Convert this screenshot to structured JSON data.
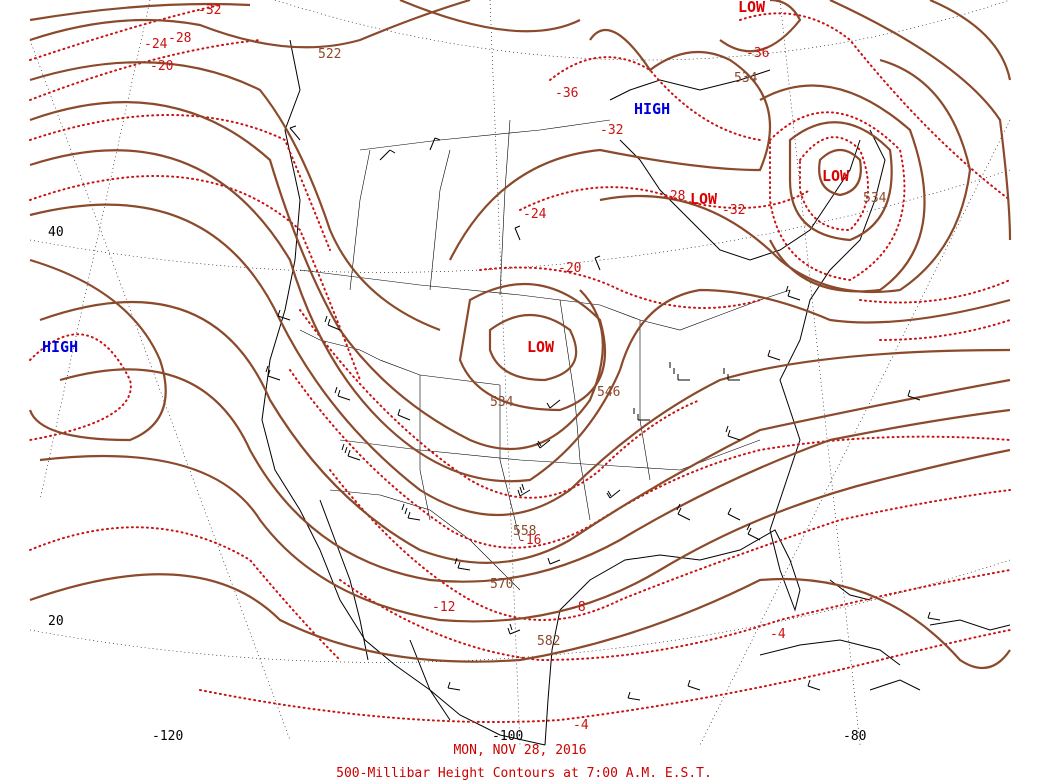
{
  "caption": {
    "date": "MON, NOV 28, 2016",
    "title": "500-Millibar Height Contours at 7:00 A.M. E.S.T."
  },
  "colors": {
    "height_contour": "#8b4a2b",
    "temperature_contour": "#cc1111",
    "low_label": "#dd0000",
    "high_label": "#0000dd",
    "caption": "#cc0000"
  },
  "grid_labels": {
    "lat_40": "40",
    "lat_20": "20",
    "lon_120": "-120",
    "lon_100": "-100",
    "lon_80": "-80"
  },
  "pressure_centers": {
    "high_pacific": "HIGH",
    "high_hudson": "HIGH",
    "low_dakotas": "LOW",
    "low_ontario": "LOW",
    "low_labrador": "LOW",
    "low_north": "LOW"
  },
  "height_labels": {
    "h522": "522",
    "h534_dakota": "534",
    "h534_north": "534",
    "h534_labrador": "534",
    "h546": "546",
    "h558": "558",
    "h570": "570",
    "h582": "582"
  },
  "temp_labels": {
    "t32_nw": "-32",
    "t28_nw": "-28",
    "t24_nw": "-24",
    "t20_nw": "-20",
    "t36_north": "-36",
    "t36_hudson": "-36",
    "t32_hudson": "-32",
    "t28_ontario": "-28",
    "t32_ontario": "-32",
    "t24_prairie": "-24",
    "t20_prairie": "-20",
    "t16_texas": "-16",
    "t12_mexico": "-12",
    "t8_gulf": "-8",
    "t4_carib": "-4",
    "t4_south": "-4"
  }
}
